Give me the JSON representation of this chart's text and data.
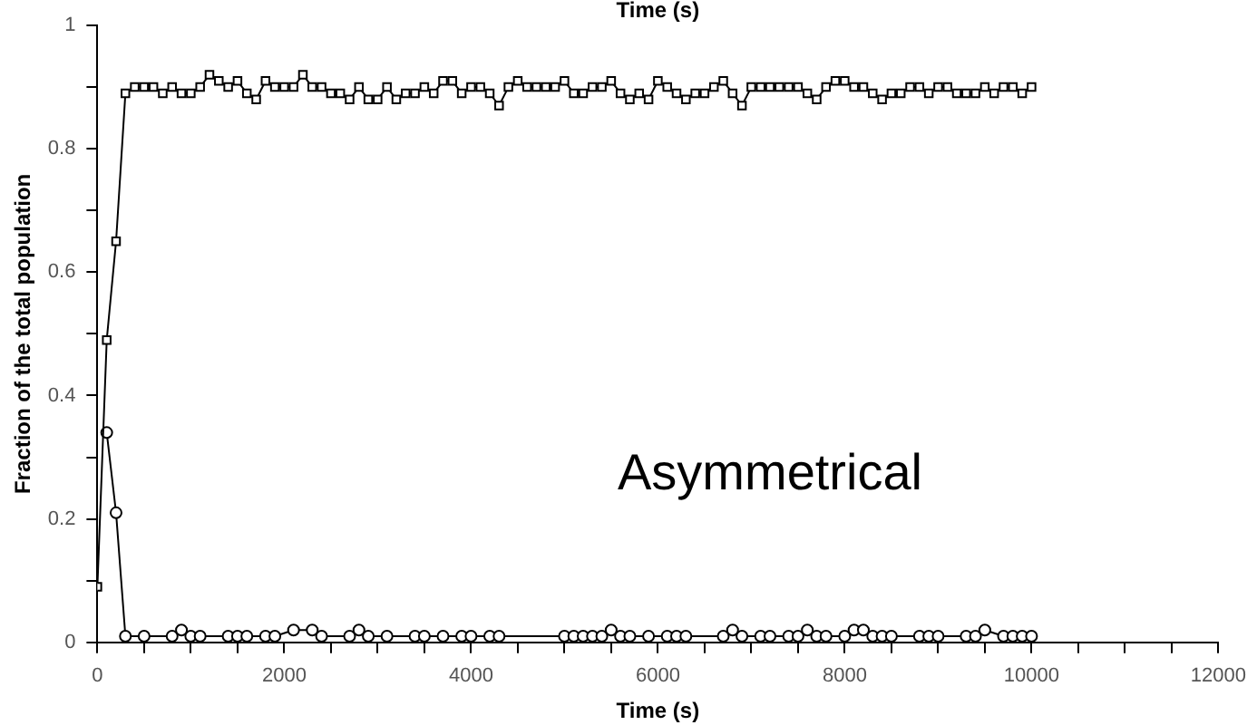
{
  "chart_data": {
    "type": "line",
    "xlabel": "Time (s)",
    "x2label": "Time (s)",
    "ylabel": "Fraction of the total population",
    "annotations": [
      "Asymmetrical"
    ],
    "xlim": [
      0,
      12000
    ],
    "ylim": [
      0,
      1
    ],
    "xticks": [
      0,
      {
        "value": 500,
        "label": null
      },
      {
        "value": 1000,
        "label": null
      },
      {
        "value": 1500,
        "label": null
      },
      2000,
      {
        "value": 2500,
        "label": null
      },
      {
        "value": 3000,
        "label": null
      },
      {
        "value": 3500,
        "label": null
      },
      4000,
      {
        "value": 4500,
        "label": null
      },
      {
        "value": 5000,
        "label": null
      },
      {
        "value": 5500,
        "label": null
      },
      6000,
      {
        "value": 6500,
        "label": null
      },
      {
        "value": 7000,
        "label": null
      },
      {
        "value": 7500,
        "label": null
      },
      8000,
      {
        "value": 8500,
        "label": null
      },
      {
        "value": 9000,
        "label": null
      },
      {
        "value": 9500,
        "label": null
      },
      10000,
      {
        "value": 10500,
        "label": null
      },
      {
        "value": 11000,
        "label": null
      },
      {
        "value": 11500,
        "label": null
      },
      12000
    ],
    "yticks": [
      0,
      {
        "value": 0.1,
        "label": null
      },
      0.2,
      {
        "value": 0.3,
        "label": null
      },
      0.4,
      {
        "value": 0.5,
        "label": null
      },
      0.6,
      {
        "value": 0.7,
        "label": null
      },
      0.8,
      {
        "value": 0.9,
        "label": null
      },
      1
    ],
    "grid": false,
    "legend": false,
    "line_style": "solid",
    "series": [
      {
        "color": "#000000",
        "marker": "square",
        "x": [
          0,
          100,
          200,
          300,
          400,
          500,
          600,
          700,
          800,
          900,
          1000,
          1100,
          1200,
          1300,
          1400,
          1500,
          1600,
          1700,
          1800,
          1900,
          2000,
          2100,
          2200,
          2300,
          2400,
          2500,
          2600,
          2700,
          2800,
          2900,
          3000,
          3100,
          3200,
          3300,
          3400,
          3500,
          3600,
          3700,
          3800,
          3900,
          4000,
          4100,
          4200,
          4300,
          4400,
          4500,
          4600,
          4700,
          4800,
          4900,
          5000,
          5100,
          5200,
          5300,
          5400,
          5500,
          5600,
          5700,
          5800,
          5900,
          6000,
          6100,
          6200,
          6300,
          6400,
          6500,
          6600,
          6700,
          6800,
          6900,
          7000,
          7100,
          7200,
          7300,
          7400,
          7500,
          7600,
          7700,
          7800,
          7900,
          8000,
          8100,
          8200,
          8300,
          8400,
          8500,
          8600,
          8700,
          8800,
          8900,
          9000,
          9100,
          9200,
          9300,
          9400,
          9500,
          9600,
          9700,
          9800,
          9900,
          10000
        ],
        "values": [
          0.09,
          0.49,
          0.65,
          0.89,
          0.9,
          0.9,
          0.9,
          0.89,
          0.9,
          0.89,
          0.89,
          0.9,
          0.92,
          0.91,
          0.9,
          0.91,
          0.89,
          0.88,
          0.91,
          0.9,
          0.9,
          0.9,
          0.92,
          0.9,
          0.9,
          0.89,
          0.89,
          0.88,
          0.9,
          0.88,
          0.88,
          0.9,
          0.88,
          0.89,
          0.89,
          0.9,
          0.89,
          0.91,
          0.91,
          0.89,
          0.9,
          0.9,
          0.89,
          0.87,
          0.9,
          0.91,
          0.9,
          0.9,
          0.9,
          0.9,
          0.91,
          0.89,
          0.89,
          0.9,
          0.9,
          0.91,
          0.89,
          0.88,
          0.89,
          0.88,
          0.91,
          0.9,
          0.89,
          0.88,
          0.89,
          0.89,
          0.9,
          0.91,
          0.89,
          0.87,
          0.9,
          0.9,
          0.9,
          0.9,
          0.9,
          0.9,
          0.89,
          0.88,
          0.9,
          0.91,
          0.91,
          0.9,
          0.9,
          0.89,
          0.88,
          0.89,
          0.89,
          0.9,
          0.9,
          0.89,
          0.9,
          0.9,
          0.89,
          0.89,
          0.89,
          0.9,
          0.89,
          0.9,
          0.9,
          0.89,
          0.9
        ]
      },
      {
        "color": "#000000",
        "marker": "circle",
        "x": [
          100,
          200,
          300,
          500,
          800,
          900,
          1000,
          1100,
          1400,
          1500,
          1600,
          1800,
          1900,
          2100,
          2300,
          2400,
          2700,
          2800,
          2900,
          3100,
          3400,
          3500,
          3700,
          3900,
          4000,
          4200,
          4300,
          5000,
          5100,
          5200,
          5300,
          5400,
          5500,
          5600,
          5700,
          5900,
          6100,
          6200,
          6300,
          6700,
          6800,
          6900,
          7100,
          7200,
          7400,
          7500,
          7600,
          7700,
          7800,
          8000,
          8100,
          8200,
          8300,
          8400,
          8500,
          8800,
          8900,
          9000,
          9300,
          9400,
          9500,
          9700,
          9800,
          9900,
          10000
        ],
        "values": [
          0.34,
          0.21,
          0.01,
          0.01,
          0.01,
          0.02,
          0.01,
          0.01,
          0.01,
          0.01,
          0.01,
          0.01,
          0.01,
          0.02,
          0.02,
          0.01,
          0.01,
          0.02,
          0.01,
          0.01,
          0.01,
          0.01,
          0.01,
          0.01,
          0.01,
          0.01,
          0.01,
          0.01,
          0.01,
          0.01,
          0.01,
          0.01,
          0.02,
          0.01,
          0.01,
          0.01,
          0.01,
          0.01,
          0.01,
          0.01,
          0.02,
          0.01,
          0.01,
          0.01,
          0.01,
          0.01,
          0.02,
          0.01,
          0.01,
          0.01,
          0.02,
          0.02,
          0.01,
          0.01,
          0.01,
          0.01,
          0.01,
          0.01,
          0.01,
          0.01,
          0.02,
          0.01,
          0.01,
          0.01,
          0.01
        ]
      }
    ]
  }
}
